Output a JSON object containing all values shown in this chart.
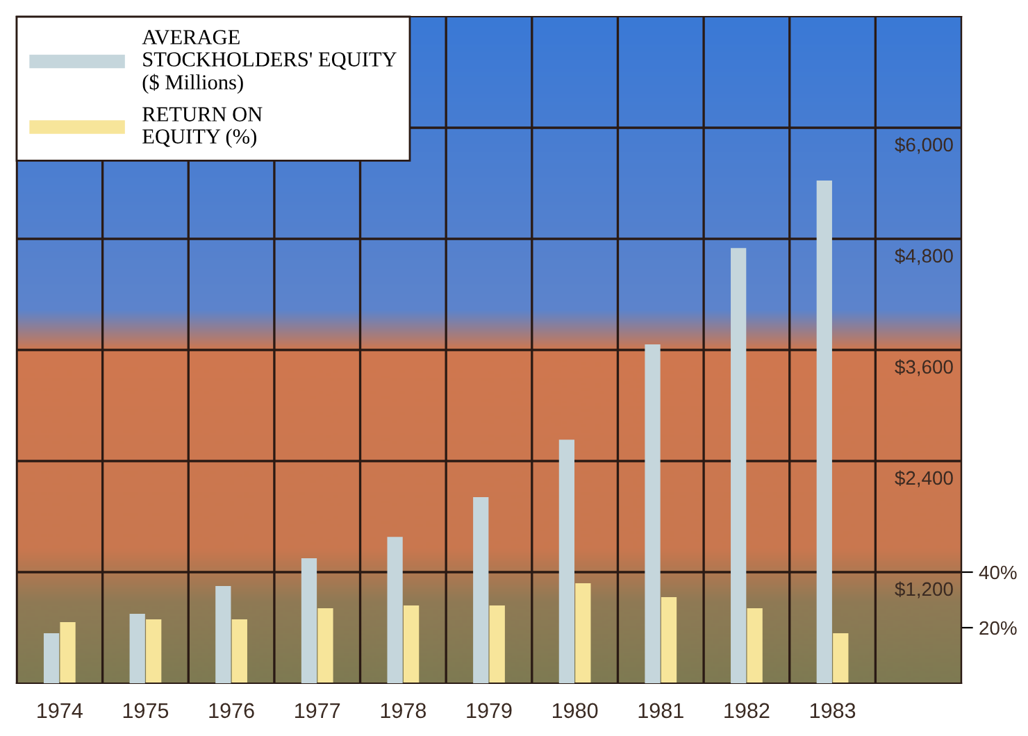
{
  "chart_data": {
    "type": "bar",
    "categories": [
      "1974",
      "1975",
      "1976",
      "1977",
      "1978",
      "1979",
      "1980",
      "1981",
      "1982",
      "1983"
    ],
    "series": [
      {
        "name": "AVERAGE\nSTOCKHOLDERS' EQUITY\n($ Millions)",
        "color": "#c5d6dc",
        "values": [
          540,
          750,
          1050,
          1350,
          1580,
          2010,
          2630,
          3660,
          4700,
          5430
        ]
      },
      {
        "name": "RETURN ON\nEQUITY (%)",
        "color": "#f7e59a",
        "axis": "y2",
        "values": [
          22,
          23,
          23,
          27,
          28,
          28,
          36,
          31,
          27,
          18
        ]
      }
    ],
    "ylim": [
      0,
      7200
    ],
    "yticks": [
      {
        "value": 1200,
        "label": "$1,200"
      },
      {
        "value": 2400,
        "label": "$2,400"
      },
      {
        "value": 3600,
        "label": "$3,600"
      },
      {
        "value": 4800,
        "label": "$4,800"
      },
      {
        "value": 6000,
        "label": "$6,000"
      }
    ],
    "y2lim": [
      0,
      240
    ],
    "y2ticks": [
      {
        "value": 20,
        "label": "20%"
      },
      {
        "value": 40,
        "label": "40%"
      }
    ],
    "grid": true,
    "legend": "top left"
  }
}
